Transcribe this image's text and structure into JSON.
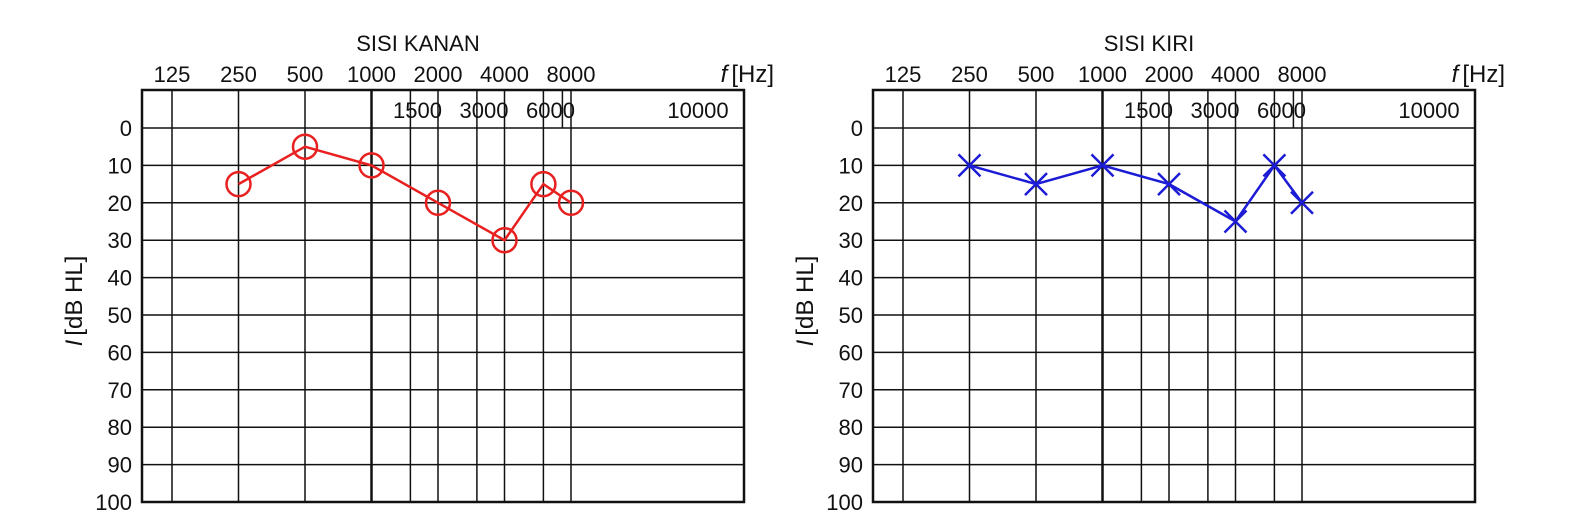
{
  "chart_data": [
    {
      "type": "line",
      "title": "SISI KANAN",
      "xlabel_symbol": "f",
      "xlabel_unit": "[Hz]",
      "ylabel_symbol": "I",
      "ylabel_unit": "[dB HL]",
      "x_ticks_top": [
        "125",
        "250",
        "500",
        "1000",
        "2000",
        "4000",
        "8000"
      ],
      "x_ticks_inner": [
        "1500",
        "3000",
        "6000",
        "10000"
      ],
      "y_ticks": [
        "0",
        "10",
        "20",
        "30",
        "40",
        "50",
        "60",
        "70",
        "80",
        "90",
        "100"
      ],
      "ylim": [
        0,
        100
      ],
      "y_inverted": true,
      "grid": true,
      "marker": "circle",
      "color": "#e82020",
      "series": [
        {
          "x": [
            250,
            500,
            1000,
            2000,
            4000,
            6000,
            8000
          ],
          "y": [
            15,
            5,
            10,
            20,
            30,
            15,
            20
          ]
        }
      ]
    },
    {
      "type": "line",
      "title": "SISI KIRI",
      "xlabel_symbol": "f",
      "xlabel_unit": "[Hz]",
      "ylabel_symbol": "I",
      "ylabel_unit": "[dB HL]",
      "x_ticks_top": [
        "125",
        "250",
        "500",
        "1000",
        "2000",
        "4000",
        "8000"
      ],
      "x_ticks_inner": [
        "1500",
        "3000",
        "6000",
        "10000"
      ],
      "y_ticks": [
        "0",
        "10",
        "20",
        "30",
        "40",
        "50",
        "60",
        "70",
        "80",
        "90",
        "100"
      ],
      "ylim": [
        0,
        100
      ],
      "y_inverted": true,
      "grid": true,
      "marker": "cross",
      "color": "#1c1cd6",
      "series": [
        {
          "x": [
            250,
            500,
            1000,
            2000,
            4000,
            6000,
            8000
          ],
          "y": [
            10,
            15,
            10,
            15,
            25,
            10,
            20
          ]
        }
      ]
    }
  ]
}
